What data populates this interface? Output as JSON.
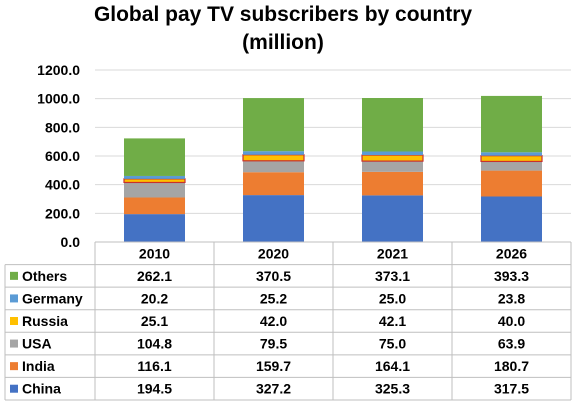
{
  "chart_data": {
    "type": "bar",
    "stacked": true,
    "title": "Global pay TV subscribers by country",
    "subtitle": "(million)",
    "categories": [
      "2010",
      "2020",
      "2021",
      "2026"
    ],
    "ylim": [
      0,
      1200
    ],
    "yticks": [
      "0.0",
      "200.0",
      "400.0",
      "600.0",
      "800.0",
      "1000.0",
      "1200.0"
    ],
    "grid": true,
    "legend": "data-table-left",
    "series": [
      {
        "name": "China",
        "color": "#4472c4",
        "values": [
          194.5,
          327.2,
          325.3,
          317.5
        ],
        "labels": [
          "194.5",
          "327.2",
          "325.3",
          "317.5"
        ]
      },
      {
        "name": "India",
        "color": "#ed7d31",
        "values": [
          116.1,
          159.7,
          164.1,
          180.7
        ],
        "labels": [
          "116.1",
          "159.7",
          "164.1",
          "180.7"
        ]
      },
      {
        "name": "USA",
        "color": "#a5a5a5",
        "values": [
          104.8,
          79.5,
          75.0,
          63.9
        ],
        "labels": [
          "104.8",
          "79.5",
          "75.0",
          "63.9"
        ]
      },
      {
        "name": "Russia",
        "color": "#ffc000",
        "values": [
          25.1,
          42.0,
          42.1,
          40.0
        ],
        "labels": [
          "25.1",
          "42.0",
          "42.1",
          "40.0"
        ]
      },
      {
        "name": "Germany",
        "color": "#5b9bd5",
        "values": [
          20.2,
          25.2,
          25.0,
          23.8
        ],
        "labels": [
          "20.2",
          "25.2",
          "25.0",
          "23.8"
        ]
      },
      {
        "name": "Others",
        "color": "#70ad47",
        "values": [
          262.1,
          370.5,
          373.1,
          393.3
        ],
        "labels": [
          "262.1",
          "370.5",
          "373.1",
          "393.3"
        ]
      }
    ]
  }
}
